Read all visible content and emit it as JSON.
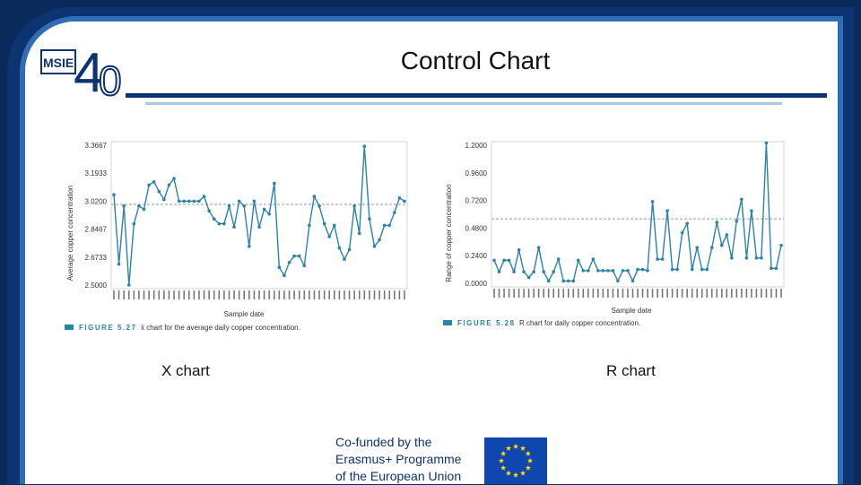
{
  "title": "Control Chart",
  "logo": {
    "text": "MSIE",
    "number": "4",
    "suffix": "0"
  },
  "label_x": "X chart",
  "label_r": "R chart",
  "eu": {
    "line1": "Co-funded by the",
    "line2": "Erasmus+ Programme",
    "line3": "of the European Union"
  },
  "colors": {
    "series": "#2b83a8",
    "frame": "#0d3370",
    "accent": "#2f6db5"
  },
  "chart_data": [
    {
      "type": "line",
      "title": "",
      "xlabel": "Sample date",
      "ylabel": "Average copper concentration",
      "yticks": [
        "3.3667",
        "3.1933",
        "3.0200",
        "2.8467",
        "2.6733",
        "2.5000"
      ],
      "ylim": [
        2.5,
        3.3667
      ],
      "center_line": 3.0,
      "values": [
        3.06,
        2.63,
        2.99,
        2.5,
        2.88,
        2.99,
        2.97,
        3.12,
        3.14,
        3.08,
        3.03,
        3.12,
        3.16,
        3.02,
        3.02,
        3.02,
        3.02,
        3.02,
        3.05,
        2.96,
        2.91,
        2.88,
        2.88,
        2.99,
        2.86,
        3.02,
        2.99,
        2.74,
        3.02,
        2.86,
        2.97,
        2.94,
        3.13,
        2.61,
        2.56,
        2.64,
        2.68,
        2.68,
        2.62,
        2.87,
        3.05,
        2.99,
        2.88,
        2.8,
        2.87,
        2.73,
        2.66,
        2.72,
        2.99,
        2.82,
        3.36,
        2.91,
        2.74,
        2.78,
        2.87,
        2.87,
        2.95,
        3.04,
        3.02
      ],
      "caption_label": "FIGURE 5.27",
      "caption_text": "x̄ chart for the average daily copper concentration."
    },
    {
      "type": "line",
      "title": "",
      "xlabel": "Sample date",
      "ylabel": "Range of copper concentration",
      "yticks": [
        "1.2000",
        "0.9600",
        "0.7200",
        "0.4800",
        "0.2400",
        "0.0000"
      ],
      "ylim": [
        0,
        1.2
      ],
      "center_line": 0.56,
      "values": [
        0.2,
        0.1,
        0.2,
        0.2,
        0.1,
        0.29,
        0.1,
        0.05,
        0.1,
        0.31,
        0.1,
        0.02,
        0.1,
        0.21,
        0.02,
        0.02,
        0.02,
        0.2,
        0.11,
        0.11,
        0.21,
        0.11,
        0.11,
        0.11,
        0.11,
        0.02,
        0.11,
        0.11,
        0.02,
        0.12,
        0.12,
        0.11,
        0.71,
        0.21,
        0.21,
        0.63,
        0.12,
        0.12,
        0.44,
        0.52,
        0.12,
        0.31,
        0.12,
        0.12,
        0.31,
        0.53,
        0.33,
        0.42,
        0.22,
        0.54,
        0.73,
        0.22,
        0.63,
        0.22,
        0.22,
        1.22,
        0.13,
        0.13,
        0.33
      ],
      "caption_label": "FIGURE 5.28",
      "caption_text": "R chart for daily copper concentration."
    }
  ]
}
